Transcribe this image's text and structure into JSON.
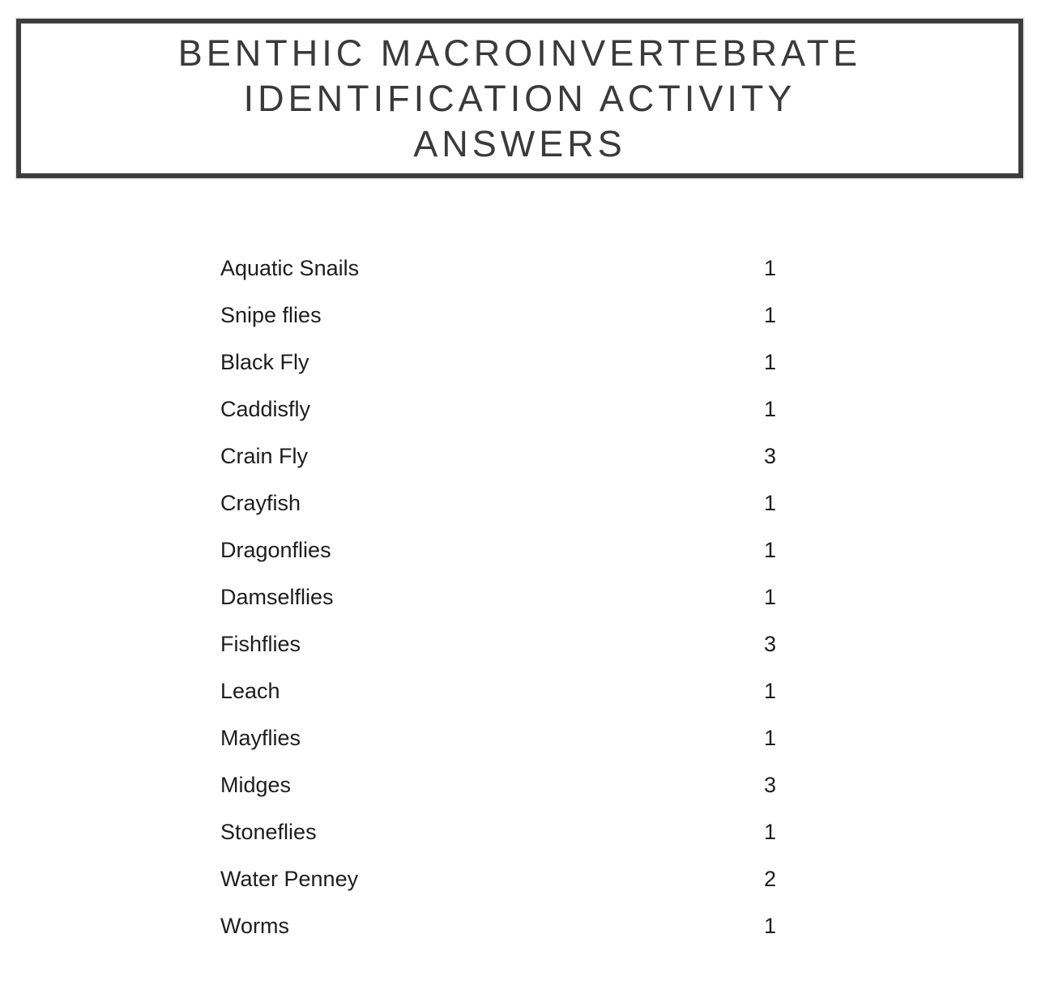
{
  "title": {
    "line1": "BENTHIC MACROINVERTEBRATE",
    "line2": "IDENTIFICATION ACTIVITY",
    "line3": "ANSWERS"
  },
  "answers": [
    {
      "name": "Aquatic Snails",
      "count": "1"
    },
    {
      "name": "Snipe flies",
      "count": "1"
    },
    {
      "name": "Black Fly",
      "count": "1"
    },
    {
      "name": "Caddisfly",
      "count": "1"
    },
    {
      "name": "Crain Fly",
      "count": "3"
    },
    {
      "name": "Crayfish",
      "count": "1"
    },
    {
      "name": "Dragonflies",
      "count": "1"
    },
    {
      "name": "Damselflies",
      "count": "1"
    },
    {
      "name": "Fishflies",
      "count": "3"
    },
    {
      "name": "Leach",
      "count": "1"
    },
    {
      "name": "Mayflies",
      "count": "1"
    },
    {
      "name": "Midges",
      "count": "3"
    },
    {
      "name": "Stoneflies",
      "count": "1"
    },
    {
      "name": "Water Penney",
      "count": "2"
    },
    {
      "name": "Worms",
      "count": "1"
    }
  ],
  "colors": {
    "border": "#3d3d3d",
    "title_text": "#3a3a3a",
    "list_text": "#1d1d1d",
    "background": "#ffffff"
  }
}
